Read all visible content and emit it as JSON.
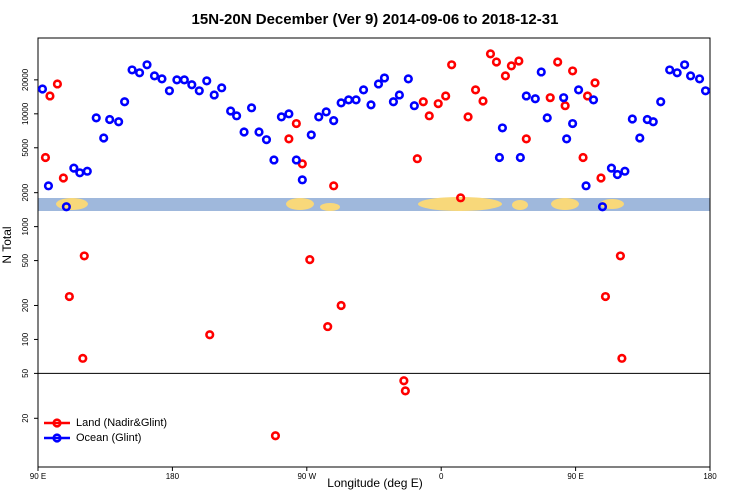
{
  "chart_data": {
    "type": "scatter",
    "title": "15N-20N December (Ver 9)   2014-09-06 to 2018-12-31",
    "x_label": "Longitude (deg E)",
    "y_label": "N Total",
    "log_y": true,
    "legend": "bottom-left",
    "xlim": [
      90,
      540
    ],
    "xticks": [
      {
        "value": 90,
        "label": "90 E"
      },
      180,
      {
        "value": 270,
        "label": "90 W"
      },
      {
        "value": 360,
        "label": "0"
      },
      {
        "value": 450,
        "label": "90 E"
      },
      {
        "value": 540,
        "label": "180"
      }
    ],
    "ylim": [
      7.4,
      47000
    ],
    "yticks": [
      20,
      50,
      100,
      200,
      500,
      1000,
      2000,
      5000,
      10000,
      20000
    ],
    "series": [
      {
        "name": "Land (Nadir&Glint)",
        "color": "#ff0000",
        "x": [
          95,
          98,
          103,
          107,
          111,
          121,
          120,
          205,
          249,
          258,
          263,
          267,
          272,
          284,
          288,
          293,
          335,
          336,
          344,
          348,
          352,
          358,
          363,
          367,
          373,
          378,
          383,
          388,
          393,
          397,
          403,
          407,
          412,
          417,
          433,
          438,
          443,
          448,
          455,
          458,
          463,
          467,
          470,
          480,
          481
        ],
        "values": [
          4100,
          14400,
          18400,
          2700,
          240,
          550,
          68,
          110,
          14,
          6000,
          8200,
          3600,
          510,
          130,
          2300,
          200,
          43,
          35,
          4000,
          12800,
          9600,
          12300,
          14400,
          27200,
          1800,
          9400,
          16300,
          13000,
          34000,
          28800,
          21700,
          26600,
          29400,
          6000,
          13900,
          28800,
          11800,
          24000,
          4100,
          14400,
          18800,
          2700,
          240,
          550,
          68
        ]
      },
      {
        "name": "Ocean (Glint)",
        "color": "#0000ff",
        "x": [
          93,
          97,
          109,
          114,
          118,
          123,
          129,
          134,
          138,
          144,
          148,
          153,
          158,
          163,
          168,
          173,
          178,
          183,
          188,
          193,
          198,
          203,
          208,
          213,
          219,
          223,
          228,
          233,
          238,
          243,
          248,
          253,
          258,
          263,
          267,
          273,
          278,
          283,
          288,
          293,
          298,
          303,
          308,
          313,
          318,
          322,
          328,
          332,
          338,
          342,
          399,
          401,
          413,
          417,
          423,
          427,
          431,
          442,
          444,
          448,
          452,
          457,
          462,
          468,
          474,
          478,
          483,
          488,
          493,
          498,
          502,
          507,
          513,
          518,
          523,
          527,
          533,
          537
        ],
        "values": [
          16600,
          2300,
          1500,
          3300,
          3000,
          3100,
          9200,
          6100,
          8900,
          8500,
          12800,
          24500,
          23100,
          27200,
          21700,
          20400,
          16000,
          20000,
          20000,
          18100,
          16000,
          19600,
          14700,
          17000,
          10600,
          9600,
          6900,
          11300,
          6900,
          5900,
          3900,
          9400,
          10000,
          3900,
          2600,
          6500,
          9400,
          10400,
          8700,
          12500,
          13300,
          13300,
          16300,
          12000,
          18400,
          20800,
          12800,
          14700,
          20400,
          11800,
          4100,
          7500,
          4100,
          14400,
          13600,
          23500,
          9200,
          13900,
          6000,
          8200,
          16300,
          2300,
          13300,
          1500,
          3300,
          2900,
          3100,
          9000,
          6100,
          8900,
          8500,
          12800,
          24500,
          23100,
          27200,
          21700,
          20400,
          16000
        ]
      }
    ]
  }
}
